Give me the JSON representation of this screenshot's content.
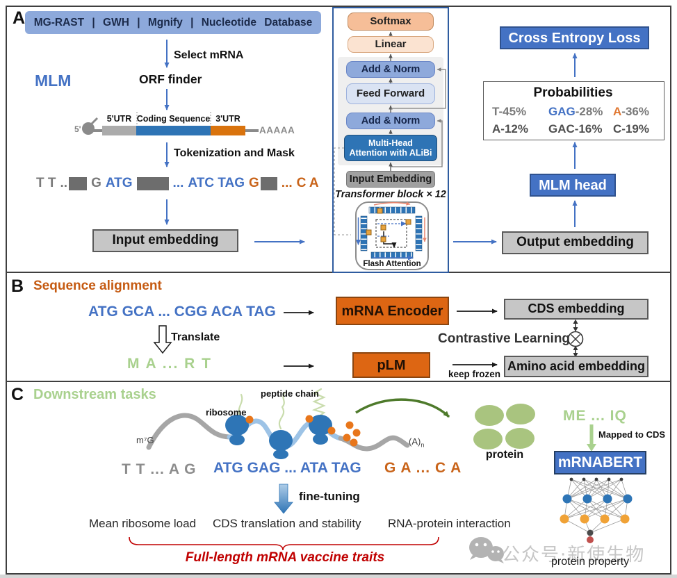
{
  "colors": {
    "accent_blue": "#4472C4",
    "banner_blue": "#8DA9DB",
    "mha_blue": "#2E74B5",
    "orange_box": "#DD6613",
    "orange_text": "#C9641A",
    "light_green": "#A9D18E",
    "red": "#C00000",
    "gray_box": "#C6C6C6"
  },
  "panel_a": {
    "label": "A",
    "databases_banner": "MG-RAST | GWH | Mgnify | Nucleotide Database",
    "select_mrna_label": "Select mRNA",
    "mlm_label": "MLM",
    "orf_finder_label": "ORF finder",
    "mrna_diagram": {
      "five_prime": "5'",
      "utr5": "5'UTR",
      "cds": "Coding Sequence",
      "utr3": "3'UTR",
      "poly_a": "AAAAA"
    },
    "tokenization_label": "Tokenization and Mask",
    "token_row": {
      "gray_start": "T T",
      "gray_dots": "..",
      "gray_g": "G",
      "start_codon": "ATG",
      "blue_dots": "...",
      "blue_codons": "ATC TAG",
      "orange_g": "G",
      "orange_dots": "...",
      "orange_end": "C A"
    },
    "input_embedding_label": "Input embedding",
    "transformer": {
      "softmax": "Softmax",
      "linear": "Linear",
      "add_norm_top": "Add & Norm",
      "feed_forward": "Feed Forward",
      "add_norm_bottom": "Add & Norm",
      "attention": "Multi-Head Attention with ALiBi",
      "input_embedding": "Input Embedding",
      "caption": "Transformer block × 12",
      "flash_attention": "Flash Attention"
    },
    "cross_entropy_label": "Cross Entropy Loss",
    "probabilities": {
      "title": "Probabilities",
      "cells": [
        {
          "token": "T",
          "pct": "-45%"
        },
        {
          "token": "GAG",
          "pct": "-28%"
        },
        {
          "token": "A",
          "pct": "-36%"
        },
        {
          "token": "A-12%",
          "pct": ""
        },
        {
          "token": "GAC-16%",
          "pct": ""
        },
        {
          "token": "C-19%",
          "pct": ""
        }
      ]
    },
    "mlm_head_label": "MLM head",
    "output_embedding_label": "Output embedding"
  },
  "panel_b": {
    "label": "B",
    "title": "Sequence alignment",
    "cds_sequence": "ATG GCA ... CGG ACA TAG",
    "translate_label": "Translate",
    "protein_sequence": "M A ... R T",
    "mrna_encoder_label": "mRNA Encoder",
    "plm_label": "pLM",
    "keep_frozen_label": "keep frozen",
    "cds_embedding_label": "CDS embedding",
    "amino_embedding_label": "Amino acid embedding",
    "contrastive_label": "Contrastive Learning"
  },
  "panel_c": {
    "label": "C",
    "title": "Downstream tasks",
    "cap_label": "m⁷G",
    "ribosome_label": "ribosome",
    "peptide_label": "peptide chain",
    "poly_a_base": "(A)",
    "poly_a_sub": "n",
    "protein_label": "protein",
    "seq_gray": "T T ... A G",
    "seq_blue": "ATG GAG ... ATA TAG",
    "seq_orange": "G A ... C A",
    "fine_tuning_label": "fine-tuning",
    "protein_seq": "ME ... IQ",
    "mapped_label": "Mapped to CDS",
    "mrnabert_label": "mRNABERT",
    "protein_property_label": "protein property",
    "tasks": [
      "Mean ribosome load",
      "CDS translation and stability",
      "RNA-protein interaction"
    ],
    "traits_label": "Full-length mRNA vaccine traits"
  },
  "watermark": {
    "text": "公众号·新使生物"
  }
}
